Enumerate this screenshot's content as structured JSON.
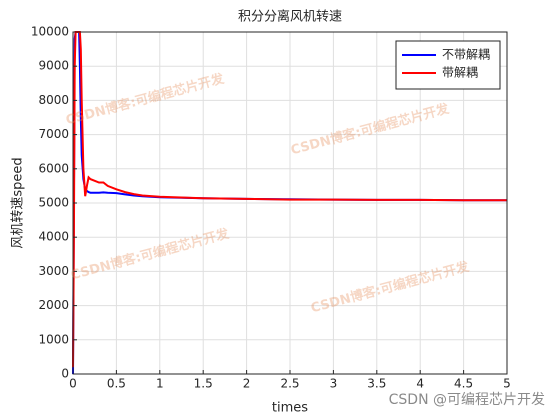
{
  "chart_data": {
    "type": "line",
    "title": "积分分离风机转速",
    "x_label": "times",
    "y_label": "风机转速speed",
    "x": [
      0,
      0.01,
      0.02,
      0.03,
      0.05,
      0.07,
      0.08,
      0.09,
      0.1,
      0.12,
      0.14,
      0.16,
      0.18,
      0.2,
      0.25,
      0.3,
      0.35,
      0.4,
      0.5,
      0.6,
      0.7,
      0.8,
      1,
      1.5,
      2,
      2.5,
      3,
      3.5,
      4,
      4.5,
      5
    ],
    "series": [
      {
        "name": "不带解耦",
        "color": "#0000ff",
        "values": [
          0,
          5000,
          9800,
          10000,
          10000,
          10000,
          9000,
          7500,
          6400,
          5700,
          5400,
          5350,
          5320,
          5300,
          5300,
          5300,
          5310,
          5300,
          5290,
          5250,
          5220,
          5200,
          5170,
          5140,
          5120,
          5110,
          5100,
          5090,
          5090,
          5080,
          5080
        ]
      },
      {
        "name": "带解耦",
        "color": "#ff0000",
        "values": [
          200,
          4000,
          9000,
          10000,
          10000,
          10000,
          10000,
          9500,
          8000,
          6000,
          5200,
          5500,
          5750,
          5700,
          5650,
          5600,
          5600,
          5500,
          5400,
          5320,
          5260,
          5220,
          5180,
          5140,
          5120,
          5100,
          5100,
          5090,
          5090,
          5080,
          5080
        ]
      }
    ],
    "xlim": [
      0,
      5
    ],
    "xticks": [
      0,
      0.5,
      1,
      1.5,
      2,
      2.5,
      3,
      3.5,
      4,
      4.5,
      5
    ],
    "ylim": [
      0,
      10000
    ],
    "yticks": [
      0,
      1000,
      2000,
      3000,
      4000,
      5000,
      6000,
      7000,
      8000,
      9000,
      10000
    ],
    "grid": true,
    "legend": "top-right"
  },
  "watermarks": [
    "CSDN博客:可编程芯片开发",
    "CSDN博客:可编程芯片开发",
    "CSDN博客:可编程芯片开发",
    "CSDN博客:可编程芯片开发"
  ],
  "footer": "CSDN @可编程芯片开发"
}
